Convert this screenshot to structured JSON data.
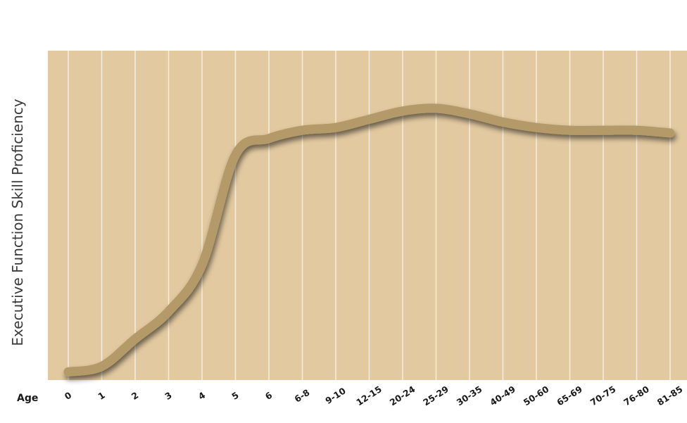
{
  "chart_data": {
    "type": "line",
    "title": "",
    "xlabel": "Age",
    "ylabel": "Executive Function Skill Proficiency",
    "categories": [
      "0",
      "1",
      "2",
      "3",
      "4",
      "5",
      "6",
      "6-8",
      "9-10",
      "12-15",
      "20-24",
      "25-29",
      "30-35",
      "40-49",
      "50-60",
      "65-69",
      "70-75",
      "76-80",
      "81-85"
    ],
    "series": [
      {
        "values": [
          3,
          5,
          15,
          25,
          42,
          82,
          88,
          91,
          92,
          95,
          98,
          99,
          97,
          94,
          92,
          91,
          91,
          91,
          90
        ]
      }
    ],
    "ylim": [
      0,
      120
    ],
    "grid": "vertical",
    "legend": "none"
  },
  "colors": {
    "plot_background": "#e2c9a0",
    "grid_line": "#f6ecdc",
    "curve": "#b39a68",
    "curve_shadow": "#6e5a38"
  }
}
